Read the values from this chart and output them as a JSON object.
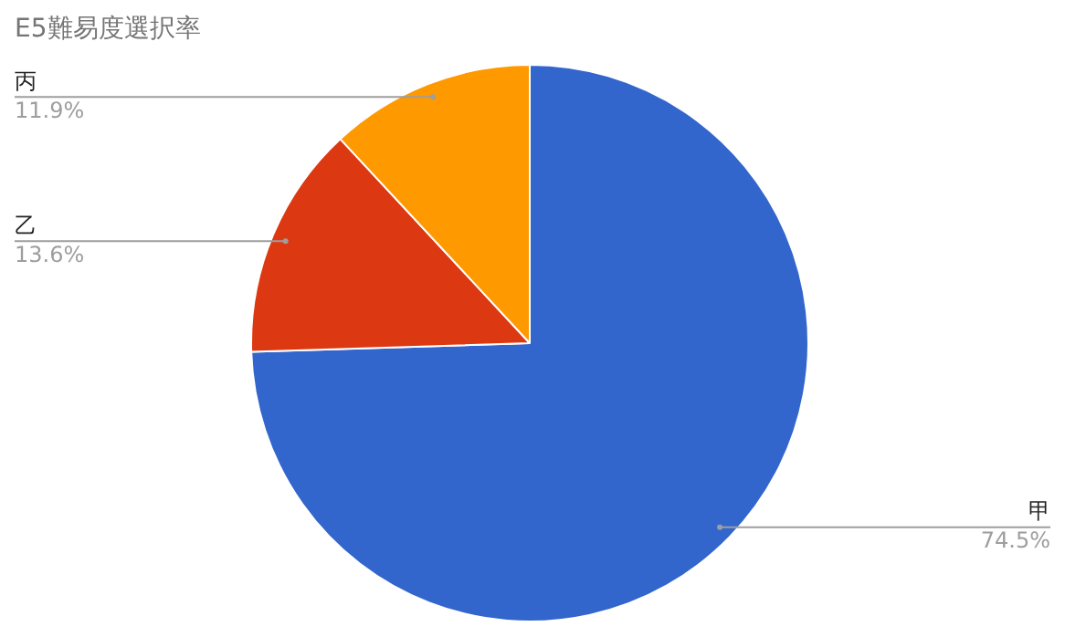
{
  "chart_data": {
    "type": "pie",
    "title": "E5難易度選択率",
    "categories": [
      "甲",
      "乙",
      "丙"
    ],
    "values": [
      74.5,
      13.6,
      11.9
    ],
    "colors": [
      "#3366cc",
      "#dc3912",
      "#ff9900"
    ],
    "value_labels": [
      "74.5%",
      "13.6%",
      "11.9%"
    ]
  }
}
